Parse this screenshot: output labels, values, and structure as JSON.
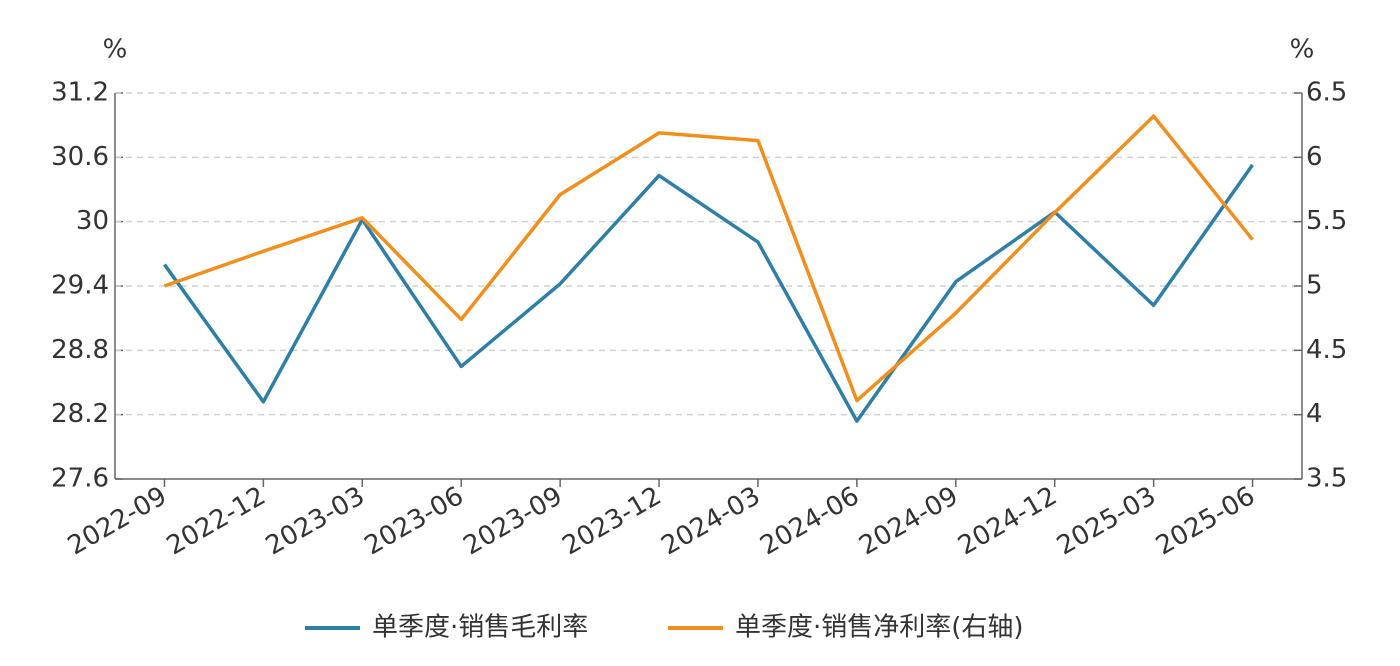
{
  "chart_data": {
    "type": "line",
    "y_unit": "%",
    "y2_unit": "%",
    "categories": [
      "2022-09",
      "2022-12",
      "2023-03",
      "2023-06",
      "2023-09",
      "2023-12",
      "2024-03",
      "2024-06",
      "2024-09",
      "2024-12",
      "2025-03",
      "2025-06"
    ],
    "series": [
      {
        "name": "单季度·销售毛利率",
        "color": "#2e7fa8",
        "values": [
          29.6,
          28.32,
          30.02,
          28.65,
          29.42,
          30.43,
          29.81,
          28.14,
          29.44,
          30.09,
          29.22,
          30.53
        ]
      },
      {
        "name": "单季度·销售净利率(右轴)",
        "color": "#f28e1c",
        "axis": "y2",
        "values": [
          5.0,
          5.27,
          5.53,
          4.74,
          5.71,
          6.19,
          6.13,
          4.11,
          4.79,
          5.57,
          6.32,
          5.36
        ]
      }
    ],
    "ylim": [
      27.6,
      31.2
    ],
    "yticks": [
      27.6,
      28.2,
      28.8,
      29.4,
      30,
      30.6,
      31.2
    ],
    "y2lim": [
      3.5,
      6.5
    ],
    "y2ticks": [
      3.5,
      4,
      4.5,
      5,
      5.5,
      6,
      6.5
    ],
    "grid": true,
    "legend": "bottom"
  }
}
